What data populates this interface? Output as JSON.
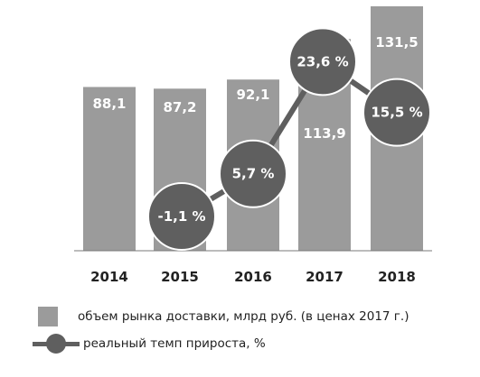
{
  "chart_data": {
    "type": "bar+line",
    "categories": [
      "2014",
      "2015",
      "2016",
      "2017",
      "2018"
    ],
    "series": [
      {
        "name": "объем рынка доставки, млрд руб. (в ценах 2017 г.)",
        "type": "bar",
        "values": [
          88.1,
          87.2,
          92.1,
          113.9,
          131.5
        ],
        "labels": [
          "88,1",
          "87,2",
          "92,1",
          "113,9",
          "131,5"
        ]
      },
      {
        "name": "реальный темп прироста, %",
        "type": "line",
        "x": [
          "2015",
          "2016",
          "2017",
          "2018"
        ],
        "values": [
          -1.1,
          5.7,
          23.6,
          15.5
        ],
        "labels": [
          "-1,1 %",
          "5,7 %",
          "23,6 %",
          "15,5 %"
        ]
      }
    ],
    "legend_position": "bottom-left",
    "grid": false,
    "colors": {
      "bar": "#9b9b9b",
      "line": "#5f5f5f",
      "label": "#ffffff"
    }
  },
  "legend": {
    "bar_label": "объем рынка доставки, млрд руб. (в ценах 2017 г.)",
    "line_label": "реальный темп прироста, %"
  }
}
